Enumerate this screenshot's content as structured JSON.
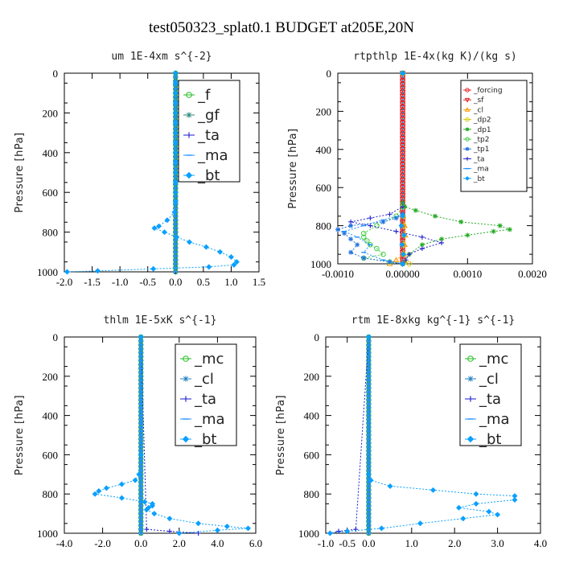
{
  "figure_title": "test050323_splat0.1  BUDGET at205E,20N",
  "chart_data": [
    {
      "type": "line",
      "title": "um  1E-4xm s^{-2}",
      "ylabel": "Pressure [hPa]",
      "xlim": [
        -2.0,
        1.5
      ],
      "ylim": [
        1000,
        0
      ],
      "xticks": [
        "-2.0",
        "-1.5",
        "-1.0",
        "-0.5",
        "0.0",
        "0.5",
        "1.0",
        "1.5"
      ],
      "xtick_values": [
        -2.0,
        -1.5,
        -1.0,
        -0.5,
        0.0,
        0.5,
        1.0,
        1.5
      ],
      "yticks": [
        "0",
        "200",
        "400",
        "600",
        "800",
        "1000"
      ],
      "ytick_values": [
        0,
        200,
        400,
        600,
        800,
        1000
      ],
      "legend_position": "top-right",
      "legend_size": "large",
      "series": [
        {
          "name": "_f",
          "color": "#22bb22",
          "marker": "circle-open",
          "const_x": 0.0
        },
        {
          "name": "_gf",
          "color": "#2a8a7a",
          "marker": "star",
          "const_x": 0.0
        },
        {
          "name": "_ta",
          "color": "#1a1acc",
          "marker": "plus",
          "const_x": 0.0
        },
        {
          "name": "_ma",
          "color": "#1e90ff",
          "marker": "dash",
          "const_x": 0.0
        },
        {
          "name": "_bt",
          "color": "#0aa0ff",
          "marker": "diamond",
          "y": [
            0,
            50,
            100,
            150,
            200,
            250,
            300,
            350,
            400,
            450,
            500,
            550,
            600,
            650,
            700,
            740,
            770,
            780,
            800,
            825,
            850,
            875,
            900,
            925,
            950,
            965,
            975,
            985,
            995,
            1000
          ],
          "x": [
            0,
            0,
            0,
            0,
            0,
            0,
            0,
            0,
            0,
            0,
            0,
            0,
            0,
            0,
            -0.02,
            -0.15,
            -0.3,
            -0.38,
            -0.2,
            0.02,
            0.25,
            0.55,
            0.8,
            1.0,
            1.1,
            1.05,
            0.6,
            -0.4,
            -1.4,
            -1.95
          ]
        }
      ]
    },
    {
      "type": "line",
      "title": "rtpthlp  1E-4x(kg K)/(kg s)",
      "ylabel": "Pressure [hPa]",
      "xlim": [
        -0.001,
        0.002
      ],
      "ylim": [
        1000,
        0
      ],
      "xticks": [
        "-0.0010",
        "0.00000",
        "0.0010",
        "0.0020"
      ],
      "xtick_values": [
        -0.001,
        0.0,
        0.001,
        0.002
      ],
      "yticks": [
        "0",
        "200",
        "400",
        "600",
        "800",
        "1000"
      ],
      "ytick_values": [
        0,
        200,
        400,
        600,
        800,
        1000
      ],
      "legend_position": "top-right",
      "legend_size": "small",
      "series": [
        {
          "name": "_forcing",
          "color": "#e02020",
          "marker": "circle-open",
          "const_x": 0.0
        },
        {
          "name": "_sf",
          "color": "#e02020",
          "marker": "triangle-down",
          "const_x": 0.0
        },
        {
          "name": "_cl",
          "color": "#ff9900",
          "marker": "triangle",
          "y": [
            0,
            700,
            750,
            800,
            850,
            900,
            950,
            980,
            1000
          ],
          "x": [
            0,
            0,
            1e-05,
            3e-05,
            4e-05,
            3e-05,
            2e-05,
            -0.0001,
            -0.0002
          ]
        },
        {
          "name": "_dp2",
          "color": "#d8c800",
          "marker": "circle-open",
          "y": [
            0,
            700,
            750,
            800,
            850,
            900,
            950,
            990,
            1000
          ],
          "x": [
            0,
            0,
            1e-05,
            2e-05,
            2e-05,
            1e-05,
            1e-05,
            3e-05,
            0.0001
          ]
        },
        {
          "name": "_dp1",
          "color": "#22aa22",
          "marker": "star",
          "y": [
            0,
            680,
            700,
            720,
            750,
            780,
            800,
            820,
            830,
            850,
            870,
            900,
            950,
            1000
          ],
          "x": [
            0,
            0,
            3e-05,
            0.0002,
            0.0005,
            0.0009,
            0.0015,
            0.00165,
            0.0014,
            0.001,
            0.0006,
            0.0003,
            0.0001,
            0
          ]
        },
        {
          "name": "_tp2",
          "color": "#44cc44",
          "marker": "circle-open",
          "y": [
            0,
            700,
            750,
            800,
            840,
            860,
            880,
            900,
            920,
            950,
            970,
            990,
            1000
          ],
          "x": [
            0,
            0,
            -0.0001,
            -0.0004,
            -0.0006,
            -0.0006,
            -0.00055,
            -0.0005,
            -0.0004,
            -0.0003,
            -0.0006,
            -0.0002,
            0
          ]
        },
        {
          "name": "_tp1",
          "color": "#2070e0",
          "marker": "star",
          "y": [
            0,
            740,
            760,
            780,
            800,
            820,
            840,
            870,
            900,
            940,
            970,
            990,
            1000
          ],
          "x": [
            0,
            0,
            -0.0001,
            -0.0003,
            -0.0008,
            -0.001,
            -0.0009,
            -0.0008,
            -0.0007,
            -0.0008,
            -0.0006,
            -0.0002,
            0
          ]
        },
        {
          "name": "_ta",
          "color": "#2020cc",
          "marker": "plus",
          "y": [
            0,
            700,
            740,
            760,
            780,
            800,
            830,
            860,
            890,
            920,
            950,
            980,
            1000
          ],
          "x": [
            0,
            0,
            -0.0002,
            -0.0005,
            -0.0008,
            -0.0005,
            -0.0001,
            0.0003,
            0.0006,
            0.0003,
            0.0001,
            5e-05,
            0
          ]
        },
        {
          "name": "_ma",
          "color": "#1e90ff",
          "marker": "dash",
          "y": [
            0,
            740,
            770,
            800,
            830,
            860,
            900,
            940,
            980,
            1000
          ],
          "x": [
            0,
            0,
            -0.0003,
            -0.0006,
            -0.0009,
            -0.0007,
            -0.0005,
            -0.0006,
            -0.0003,
            0
          ]
        },
        {
          "name": "_bt",
          "color": "#0aa0ff",
          "marker": "diamond",
          "y": [
            0,
            750,
            800,
            850,
            900,
            950,
            1000
          ],
          "x": [
            0,
            0,
            -2e-05,
            2e-05,
            -1e-05,
            1e-05,
            0
          ]
        }
      ]
    },
    {
      "type": "line",
      "title": "thlm  1E-5xK s^{-1}",
      "ylabel": "Pressure [hPa]",
      "xlim": [
        -4.0,
        6.0
      ],
      "ylim": [
        1000,
        0
      ],
      "xticks": [
        "-4.0",
        "-2.0",
        "0.0",
        "2.0",
        "4.0",
        "6.0"
      ],
      "xtick_values": [
        -4.0,
        -2.0,
        0.0,
        2.0,
        4.0,
        6.0
      ],
      "yticks": [
        "0",
        "200",
        "400",
        "600",
        "800",
        "1000"
      ],
      "ytick_values": [
        0,
        200,
        400,
        600,
        800,
        1000
      ],
      "legend_position": "top-right",
      "legend_size": "large",
      "series": [
        {
          "name": "_mc",
          "color": "#22bb22",
          "marker": "circle-open",
          "const_x": 0.0
        },
        {
          "name": "_cl",
          "color": "#2080c0",
          "marker": "star",
          "const_x": 0.0
        },
        {
          "name": "_ta",
          "color": "#1a1acc",
          "marker": "plus",
          "y": [
            0,
            980,
            990,
            1000
          ],
          "x": [
            0,
            0.3,
            1.5,
            3.0
          ]
        },
        {
          "name": "_ma",
          "color": "#1e90ff",
          "marker": "dash",
          "const_x": 0.0
        },
        {
          "name": "_bt",
          "color": "#0aa0ff",
          "marker": "diamond",
          "y": [
            0,
            600,
            700,
            730,
            750,
            770,
            785,
            800,
            820,
            840,
            850,
            860,
            870,
            880,
            900,
            925,
            950,
            965,
            975,
            985,
            1000
          ],
          "x": [
            0,
            0,
            -0.1,
            -0.3,
            -1.0,
            -1.8,
            -2.2,
            -2.4,
            -1.0,
            0.2,
            0.6,
            0.6,
            0.4,
            0.3,
            0.7,
            1.5,
            3.0,
            4.5,
            5.6,
            4.0,
            2.0
          ]
        }
      ]
    },
    {
      "type": "line",
      "title": "rtm  1E-8xkg kg^{-1} s^{-1}",
      "ylabel": "Pressure [hPa]",
      "xlim": [
        -1.0,
        4.0
      ],
      "ylim": [
        1000,
        0
      ],
      "xticks": [
        "-1.0",
        "-0.5",
        "0.0",
        "1.0",
        "2.0",
        "3.0",
        "4.0"
      ],
      "xtick_values": [
        -1.0,
        -0.5,
        0.0,
        1.0,
        2.0,
        3.0,
        4.0
      ],
      "yticks": [
        "0",
        "200",
        "400",
        "600",
        "800",
        "1000"
      ],
      "ytick_values": [
        0,
        200,
        400,
        600,
        800,
        1000
      ],
      "legend_position": "top-right",
      "legend_size": "large",
      "series": [
        {
          "name": "_mc",
          "color": "#22bb22",
          "marker": "circle-open",
          "const_x": 0.0
        },
        {
          "name": "_cl",
          "color": "#2080c0",
          "marker": "star",
          "const_x": 0.0
        },
        {
          "name": "_ta",
          "color": "#1a1acc",
          "marker": "plus",
          "y": [
            0,
            980,
            990,
            1000
          ],
          "x": [
            0,
            -0.3,
            -0.7,
            -0.9
          ]
        },
        {
          "name": "_ma",
          "color": "#1e90ff",
          "marker": "dash",
          "const_x": 0.0
        },
        {
          "name": "_bt",
          "color": "#0aa0ff",
          "marker": "diamond",
          "y": [
            0,
            700,
            730,
            760,
            780,
            800,
            810,
            830,
            850,
            870,
            890,
            905,
            925,
            950,
            975,
            990,
            1000
          ],
          "x": [
            0,
            0,
            0.05,
            0.5,
            1.5,
            2.5,
            3.4,
            3.4,
            2.5,
            2.1,
            2.8,
            3.0,
            2.2,
            1.2,
            0.3,
            -0.5,
            -0.9
          ]
        }
      ]
    }
  ]
}
